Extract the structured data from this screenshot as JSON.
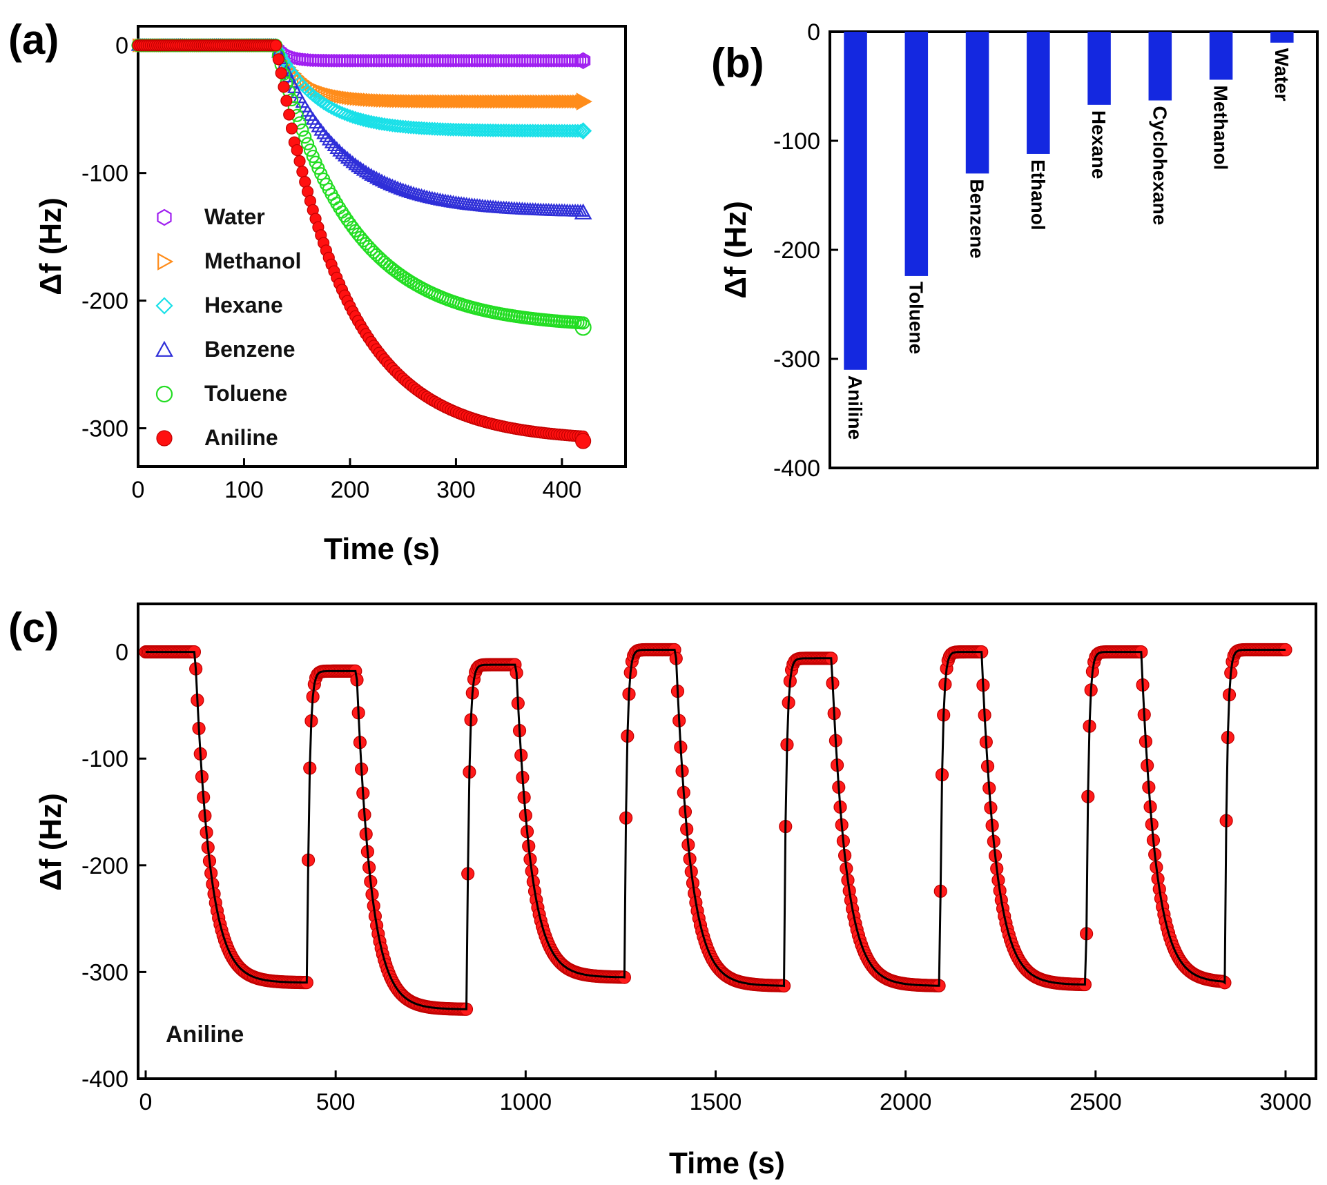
{
  "chart_data": [
    {
      "panel": "(a)",
      "type": "scatter",
      "xlabel": "Time (s)",
      "ylabel": "Δf (Hz)",
      "xlim": [
        0,
        460
      ],
      "ylim": [
        -330,
        15
      ],
      "xticks": [
        "0",
        "100",
        "200",
        "300",
        "400"
      ],
      "yticks": [
        "0",
        "-100",
        "-200",
        "-300"
      ],
      "legend_position": "left",
      "exposure_start_s": 130,
      "series": [
        {
          "name": "Water",
          "color": "#a020f0",
          "marker": "hexagon-open",
          "final": -12,
          "tau": 10
        },
        {
          "name": "Methanol",
          "color": "#ff8c1a",
          "marker": "triangle-right-open",
          "final": -44,
          "tau": 25
        },
        {
          "name": "Hexane",
          "color": "#19e0e8",
          "marker": "diamond-open",
          "final": -67,
          "tau": 40
        },
        {
          "name": "Benzene",
          "color": "#2f2fd8",
          "marker": "triangle-up-open",
          "final": -131,
          "tau": 60
        },
        {
          "name": "Toluene",
          "color": "#22dd22",
          "marker": "circle-open",
          "final": -221,
          "tau": 70
        },
        {
          "name": "Aniline",
          "color": "#ff1010",
          "marker": "circle-filled",
          "final": -310,
          "tau": 65
        }
      ]
    },
    {
      "panel": "(b)",
      "type": "bar",
      "ylabel": "Δf (Hz)",
      "ylim": [
        -400,
        0
      ],
      "yticks": [
        "0",
        "-100",
        "-200",
        "-300",
        "-400"
      ],
      "bar_color": "#1428e0",
      "categories": [
        "Aniline",
        "Toluene",
        "Benzene",
        "Ethanol",
        "Hexane",
        "Cyclohexane",
        "Methanol",
        "Water"
      ],
      "values": [
        -310,
        -224,
        -130,
        -112,
        -67,
        -63,
        -44,
        -10
      ]
    },
    {
      "panel": "(c)",
      "type": "line",
      "xlabel": "Time (s)",
      "ylabel": "Δf (Hz)",
      "xlim": [
        -20,
        3080
      ],
      "ylim": [
        -400,
        45
      ],
      "xticks": [
        "0",
        "500",
        "1000",
        "1500",
        "2000",
        "2500",
        "3000"
      ],
      "yticks": [
        "0",
        "-100",
        "-200",
        "-300",
        "-400"
      ],
      "annotation": "Aniline",
      "marker_color": "#ff1a1a",
      "line_color": "#000000",
      "cycles": [
        {
          "on": 130,
          "off": 425,
          "start": 0,
          "end": -310
        },
        {
          "on": 555,
          "off": 845,
          "start": -18,
          "end": -335
        },
        {
          "on": 975,
          "off": 1260,
          "start": -12,
          "end": -305
        },
        {
          "on": 1395,
          "off": 1680,
          "start": 2,
          "end": -313
        },
        {
          "on": 1805,
          "off": 2090,
          "start": -6,
          "end": -313
        },
        {
          "on": 2200,
          "off": 2475,
          "start": 0,
          "end": -312
        },
        {
          "on": 2620,
          "off": 2840,
          "start": 0,
          "end": -310
        }
      ],
      "end_time": 3000,
      "final_level": 2
    }
  ]
}
